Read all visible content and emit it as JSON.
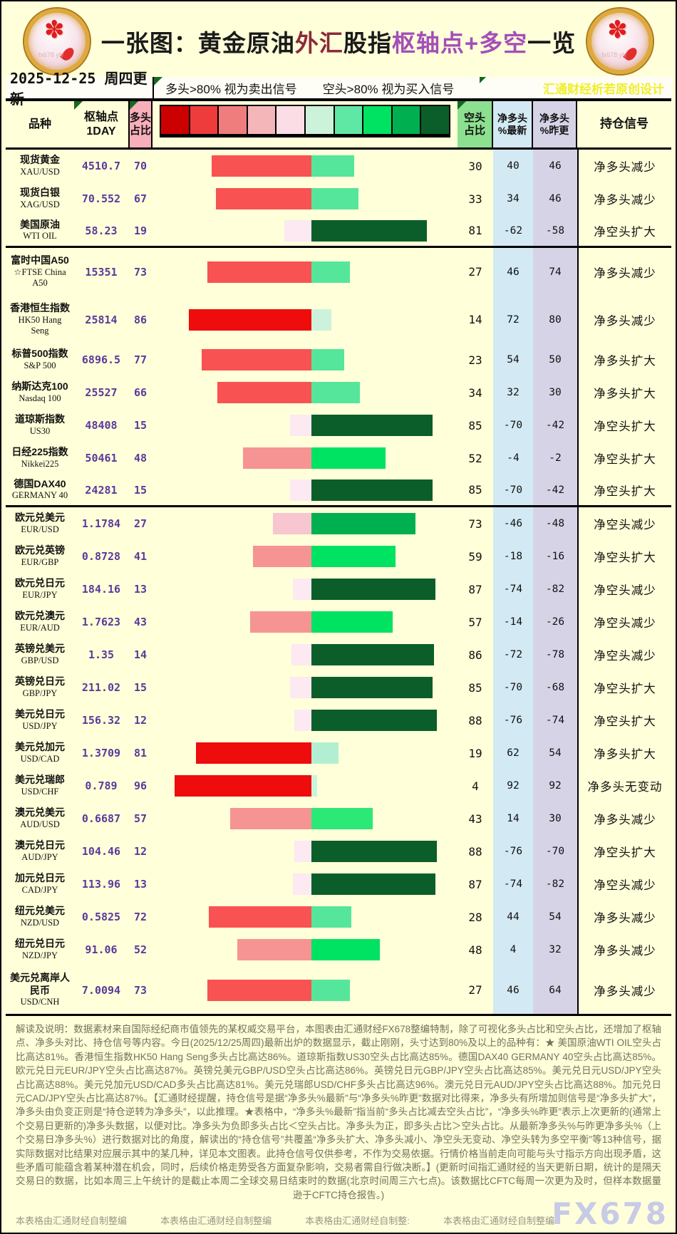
{
  "title": {
    "segments": [
      {
        "text": "一张图：黄金原油",
        "color": "#1a1a1a"
      },
      {
        "text": "外汇",
        "color": "#8b2a3a"
      },
      {
        "text": "股指",
        "color": "#1a1a1a"
      },
      {
        "text": "枢轴点+多空",
        "color": "#a34fb8"
      },
      {
        "text": "一览",
        "color": "#1a1a1a"
      }
    ],
    "logo_watermark": "fx678 yly"
  },
  "info": {
    "date": "2025-12-25 周四更新",
    "legend_long": "多头>80% 视为卖出信号",
    "legend_short": "空头>80% 视为买入信号",
    "designer": "汇通财经析若原创设计"
  },
  "table": {
    "headers": {
      "name": "品种",
      "pivot": [
        "枢轴点",
        "1DAY"
      ],
      "long": [
        "多头",
        "占比"
      ],
      "short": [
        "空头",
        "占比"
      ],
      "net_latest": [
        "净多头",
        "%最新"
      ],
      "net_prev": [
        "净多头",
        "%昨更"
      ],
      "signal": "持仓信号"
    },
    "scale_colors": [
      "#cc0000",
      "#ee3b3b",
      "#f07d7d",
      "#f5b6ba",
      "#fbdee5",
      "#cdf2da",
      "#5fe8a4",
      "#00e261",
      "#00b050",
      "#0b5e29"
    ],
    "ramps": {
      "long": [
        {
          "min": 80,
          "color": "#ee0c0c"
        },
        {
          "min": 60,
          "color": "#f85252"
        },
        {
          "min": 40,
          "color": "#f69494"
        },
        {
          "min": 22,
          "color": "#f7c6d0"
        },
        {
          "min": 0,
          "color": "#fce9f2"
        }
      ],
      "short": [
        {
          "min": 80,
          "color": "#0b5e29"
        },
        {
          "min": 65,
          "color": "#00b050"
        },
        {
          "min": 45,
          "color": "#00e261"
        },
        {
          "min": 40,
          "color": "#2ce877"
        },
        {
          "min": 22,
          "color": "#55e69b"
        },
        {
          "min": 15,
          "color": "#b2efd2"
        },
        {
          "min": 0,
          "color": "#ccf2db"
        }
      ]
    },
    "rows": [
      {
        "name": [
          "现货黄金",
          "XAU/USD"
        ],
        "pivot": "4510.7",
        "long": 70,
        "short": 30,
        "net_latest": "40",
        "net_prev": "46",
        "signal": "净多头减少"
      },
      {
        "name": [
          "现货白银",
          "XAG/USD"
        ],
        "pivot": "70.552",
        "long": 67,
        "short": 33,
        "net_latest": "34",
        "net_prev": "46",
        "signal": "净多头减少"
      },
      {
        "name": [
          "美国原油",
          "WTI OIL"
        ],
        "pivot": "58.23",
        "long": 19,
        "short": 81,
        "net_latest": "-62",
        "net_prev": "-58",
        "signal": "净空头扩大",
        "group_end": true
      },
      {
        "name": [
          "富时中国A50",
          "☆FTSE China",
          "A50"
        ],
        "pivot": "15351",
        "long": 73,
        "short": 27,
        "net_latest": "46",
        "net_prev": "74",
        "signal": "净多头减少",
        "tall": true
      },
      {
        "name": [
          "香港恒生指数",
          "HK50 Hang",
          "Seng"
        ],
        "pivot": "25814",
        "long": 86,
        "short": 14,
        "net_latest": "72",
        "net_prev": "80",
        "signal": "净多头减少",
        "tall": true
      },
      {
        "name": [
          "标普500指数",
          "S&P 500"
        ],
        "pivot": "6896.5",
        "long": 77,
        "short": 23,
        "net_latest": "54",
        "net_prev": "50",
        "signal": "净多头扩大"
      },
      {
        "name": [
          "纳斯达克100",
          "Nasdaq 100"
        ],
        "pivot": "25527",
        "long": 66,
        "short": 34,
        "net_latest": "32",
        "net_prev": "30",
        "signal": "净多头扩大"
      },
      {
        "name": [
          "道琼斯指数",
          "US30"
        ],
        "pivot": "48408",
        "long": 15,
        "short": 85,
        "net_latest": "-70",
        "net_prev": "-42",
        "signal": "净空头扩大"
      },
      {
        "name": [
          "日经225指数",
          "Nikkei225"
        ],
        "pivot": "50461",
        "long": 48,
        "short": 52,
        "net_latest": "-4",
        "net_prev": "-2",
        "signal": "净空头扩大"
      },
      {
        "name": [
          "德国DAX40",
          "GERMANY 40"
        ],
        "pivot": "24281",
        "long": 15,
        "short": 85,
        "net_latest": "-70",
        "net_prev": "-42",
        "signal": "净空头扩大",
        "group_end": true
      },
      {
        "name": [
          "欧元兑美元",
          "EUR/USD"
        ],
        "pivot": "1.1784",
        "long": 27,
        "short": 73,
        "net_latest": "-46",
        "net_prev": "-48",
        "signal": "净空头减少"
      },
      {
        "name": [
          "欧元兑英镑",
          "EUR/GBP"
        ],
        "pivot": "0.8728",
        "long": 41,
        "short": 59,
        "net_latest": "-18",
        "net_prev": "-16",
        "signal": "净空头扩大"
      },
      {
        "name": [
          "欧元兑日元",
          "EUR/JPY"
        ],
        "pivot": "184.16",
        "long": 13,
        "short": 87,
        "net_latest": "-74",
        "net_prev": "-82",
        "signal": "净空头减少"
      },
      {
        "name": [
          "欧元兑澳元",
          "EUR/AUD"
        ],
        "pivot": "1.7623",
        "long": 43,
        "short": 57,
        "net_latest": "-14",
        "net_prev": "-26",
        "signal": "净空头减少"
      },
      {
        "name": [
          "英镑兑美元",
          "GBP/USD"
        ],
        "pivot": "1.35",
        "long": 14,
        "short": 86,
        "net_latest": "-72",
        "net_prev": "-78",
        "signal": "净空头减少"
      },
      {
        "name": [
          "英镑兑日元",
          "GBP/JPY"
        ],
        "pivot": "211.02",
        "long": 15,
        "short": 85,
        "net_latest": "-70",
        "net_prev": "-68",
        "signal": "净空头扩大"
      },
      {
        "name": [
          "美元兑日元",
          "USD/JPY"
        ],
        "pivot": "156.32",
        "long": 12,
        "short": 88,
        "net_latest": "-76",
        "net_prev": "-74",
        "signal": "净空头扩大"
      },
      {
        "name": [
          "美元兑加元",
          "USD/CAD"
        ],
        "pivot": "1.3709",
        "long": 81,
        "short": 19,
        "net_latest": "62",
        "net_prev": "54",
        "signal": "净多头扩大"
      },
      {
        "name": [
          "美元兑瑞郎",
          "USD/CHF"
        ],
        "pivot": "0.789",
        "long": 96,
        "short": 4,
        "net_latest": "92",
        "net_prev": "92",
        "signal": "净多头无变动"
      },
      {
        "name": [
          "澳元兑美元",
          "AUD/USD"
        ],
        "pivot": "0.6687",
        "long": 57,
        "short": 43,
        "net_latest": "14",
        "net_prev": "30",
        "signal": "净多头减少"
      },
      {
        "name": [
          "澳元兑日元",
          "AUD/JPY"
        ],
        "pivot": "104.46",
        "long": 12,
        "short": 88,
        "net_latest": "-76",
        "net_prev": "-70",
        "signal": "净空头扩大"
      },
      {
        "name": [
          "加元兑日元",
          "CAD/JPY"
        ],
        "pivot": "113.96",
        "long": 13,
        "short": 87,
        "net_latest": "-74",
        "net_prev": "-82",
        "signal": "净空头减少"
      },
      {
        "name": [
          "纽元兑美元",
          "NZD/USD"
        ],
        "pivot": "0.5825",
        "long": 72,
        "short": 28,
        "net_latest": "44",
        "net_prev": "54",
        "signal": "净多头减少"
      },
      {
        "name": [
          "纽元兑日元",
          "NZD/JPY"
        ],
        "pivot": "91.06",
        "long": 52,
        "short": 48,
        "net_latest": "4",
        "net_prev": "32",
        "signal": "净多头减少"
      },
      {
        "name": [
          "美元兑离岸人",
          "民币",
          "USD/CNH"
        ],
        "pivot": "7.0094",
        "long": 73,
        "short": 27,
        "net_latest": "46",
        "net_prev": "64",
        "signal": "净多头减少",
        "tall": true
      }
    ]
  },
  "footer": {
    "text": "解读及说明：数据素材来自国际经纪商市值领先的某权威交易平台，本图表由汇通财经FX678整编特制，除了可视化多头占比和空头占比，还增加了枢轴点、净多头对比、持仓信号等内容。今日(2025/12/25周四)最新出炉的数据显示，截止刚刚，头寸达到80%及以上的品种有：★ 美国原油WTI OIL空头占比高达81%。香港恒生指数HK50 Hang Seng多头占比高达86%。道琼斯指数US30空头占比高达85%。德国DAX40 GERMANY 40空头占比高达85%。欧元兑日元EUR/JPY空头占比高达87%。英镑兑美元GBP/USD空头占比高达86%。英镑兑日元GBP/JPY空头占比高达85%。美元兑日元USD/JPY空头占比高达88%。美元兑加元USD/CAD多头占比高达81%。美元兑瑞郎USD/CHF多头占比高达96%。澳元兑日元AUD/JPY空头占比高达88%。加元兑日元CAD/JPY空头占比高达87%。【汇通财经提醒，持仓信号是据“净多头%最新”与“净多头%昨更”数据对比得来，净多头有所增加则信号是“净多头扩大”，净多头由负变正则是“持仓逆转为净多头”，以此推理。★表格中，“净多头%最新”指当前“多头占比减去空头占比”，“净多头%昨更”表示上次更新的(通常上个交易日更新的)净多头数据，以便对比。净多头为负即多头占比＜空头占比。净多头为正，即多头占比＞空头占比。从最新净多头%与昨更净多头%（上个交易日净多头%）进行数据对比的角度，解读出的“持仓信号”共覆盖“净多头扩大、净多头减小、净空头无变动、净空头转为多空平衡”等13种信号，据实际数据对比结果对应展示其中的某几种，详见本文图表。此持仓信号仅供参考，不作为交易依据。行情价格当前走向可能与头寸指示方向出现矛盾，这些矛盾可能蕴含着某种潜在机会，同时，后续价格走势受各方面复杂影响，交易者需自行做决断。】(更新时间指汇通财经的当天更新日期，统计的是隔天交易日的数据，比如本周三上午统计的是截止本周二全球交易日结束时的数据(北京时间周三六七点)。该数据比CFTC每周一次更为及时，但样本数据量逊于CFTC持仓报告。)",
    "credits": [
      "本表格由汇通财经自制整编",
      "本表格由汇通财经自制整编",
      "本表格由汇通财经自制整:",
      "本表格由汇通财经自制整编"
    ],
    "watermark": "FX678"
  },
  "colors": {
    "page_bg": "#ffffd9",
    "long_header_bg": "#f9aebb",
    "short_header_bg": "#8ce08f",
    "net_latest_bg": "#d3e9f3",
    "net_prev_bg": "#d7d3e7",
    "value_purple": "#5b3a9b",
    "designer_yellow": "#f0ee2a",
    "watermark_blue": "#c7cbe7"
  }
}
